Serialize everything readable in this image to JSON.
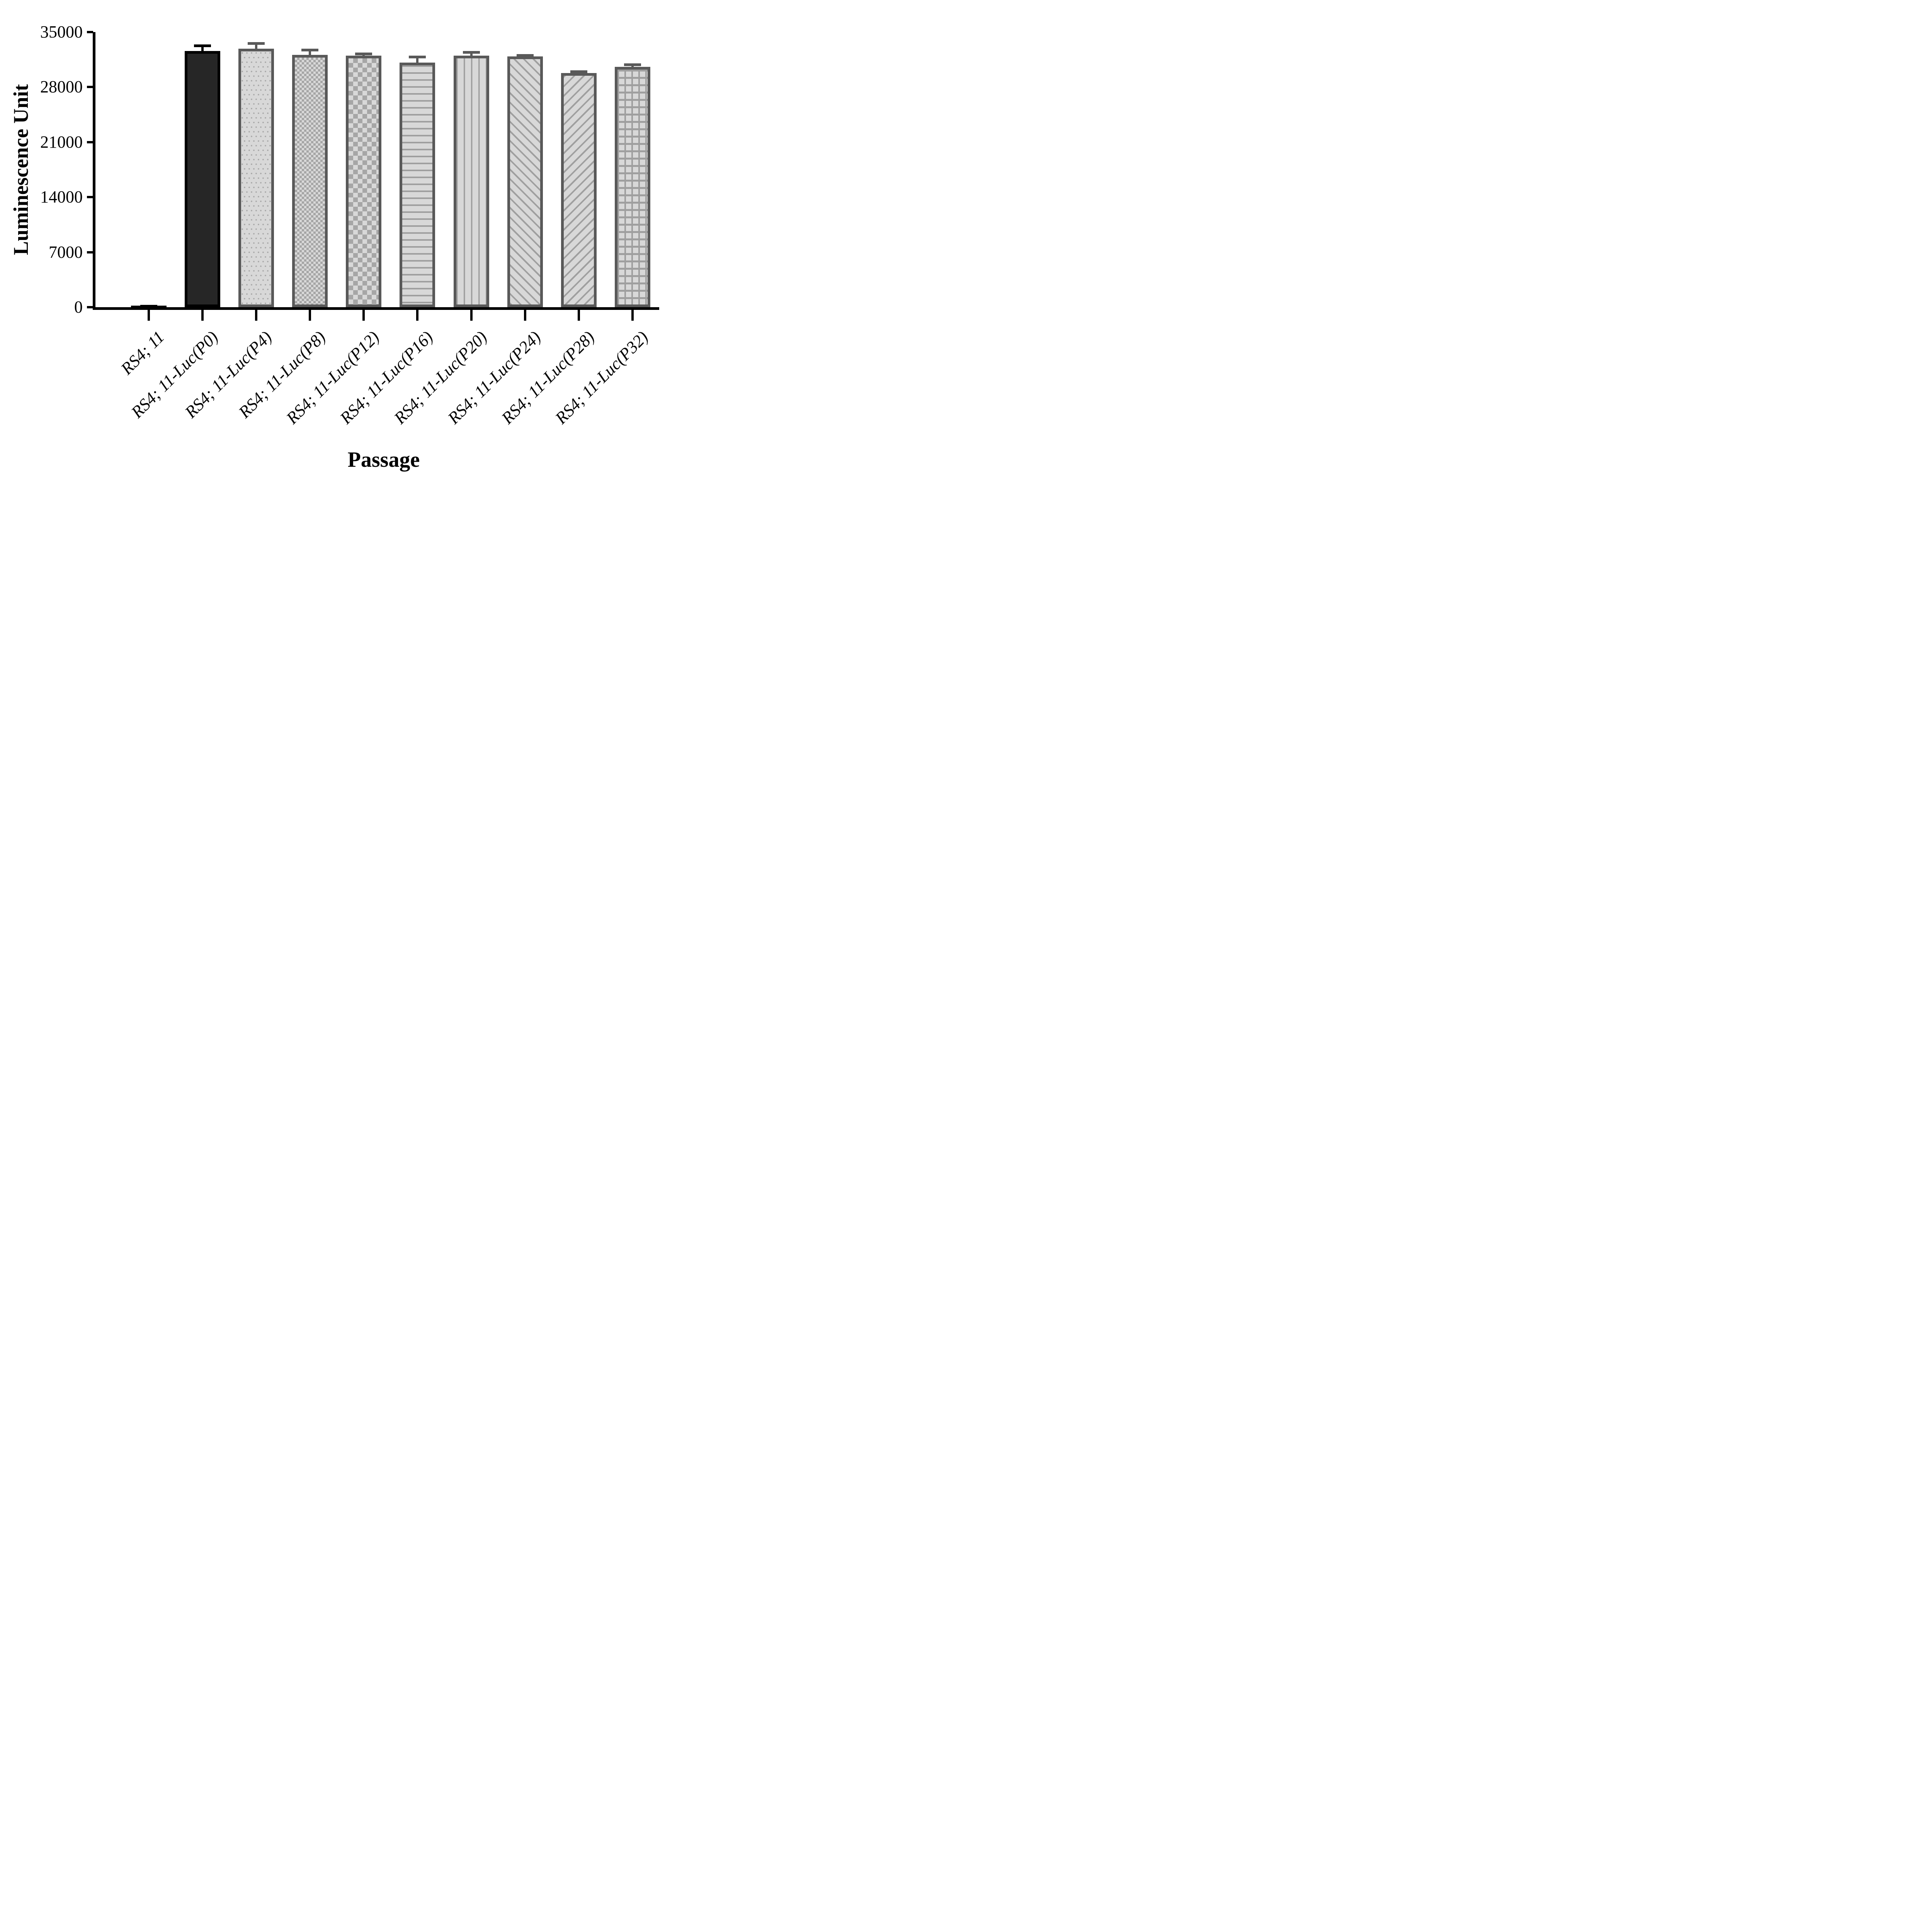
{
  "chart_data": {
    "type": "bar",
    "title": "",
    "xlabel": "Passage",
    "ylabel": "Luminescence Unit",
    "ylim": [
      0,
      35000
    ],
    "yticks": [
      0,
      7000,
      14000,
      21000,
      28000,
      35000
    ],
    "grid": "off",
    "legend": "none",
    "error_bars": "upper_only",
    "categories": [
      "RS4; 11",
      "RS4; 11-Luc(P0)",
      "RS4; 11-Luc(P4)",
      "RS4; 11-Luc(P8)",
      "RS4; 11-Luc(P12)",
      "RS4; 11-Luc(P16)",
      "RS4; 11-Luc(P20)",
      "RS4; 11-Luc(P24)",
      "RS4; 11-Luc(P28)",
      "RS4; 11-Luc(P32)"
    ],
    "values": [
      200,
      32600,
      32900,
      32100,
      32000,
      31100,
      32000,
      31900,
      29800,
      30600
    ],
    "errors_plus": [
      100,
      850,
      800,
      800,
      400,
      900,
      600,
      300,
      350,
      400
    ],
    "patterns": [
      "solid-black",
      "solid-dark",
      "dots",
      "checker-small",
      "checker-large",
      "hlines",
      "vlines",
      "diag-up",
      "diag-down",
      "grid"
    ],
    "colors": {
      "black": "#000000",
      "dark_fill": "#262626",
      "border_gray": "#595959",
      "pattern_light": "#d8d8d8",
      "pattern_dark": "#a6a6a6",
      "stripe_gray": "#9f9f9f",
      "background": "#ffffff"
    }
  }
}
